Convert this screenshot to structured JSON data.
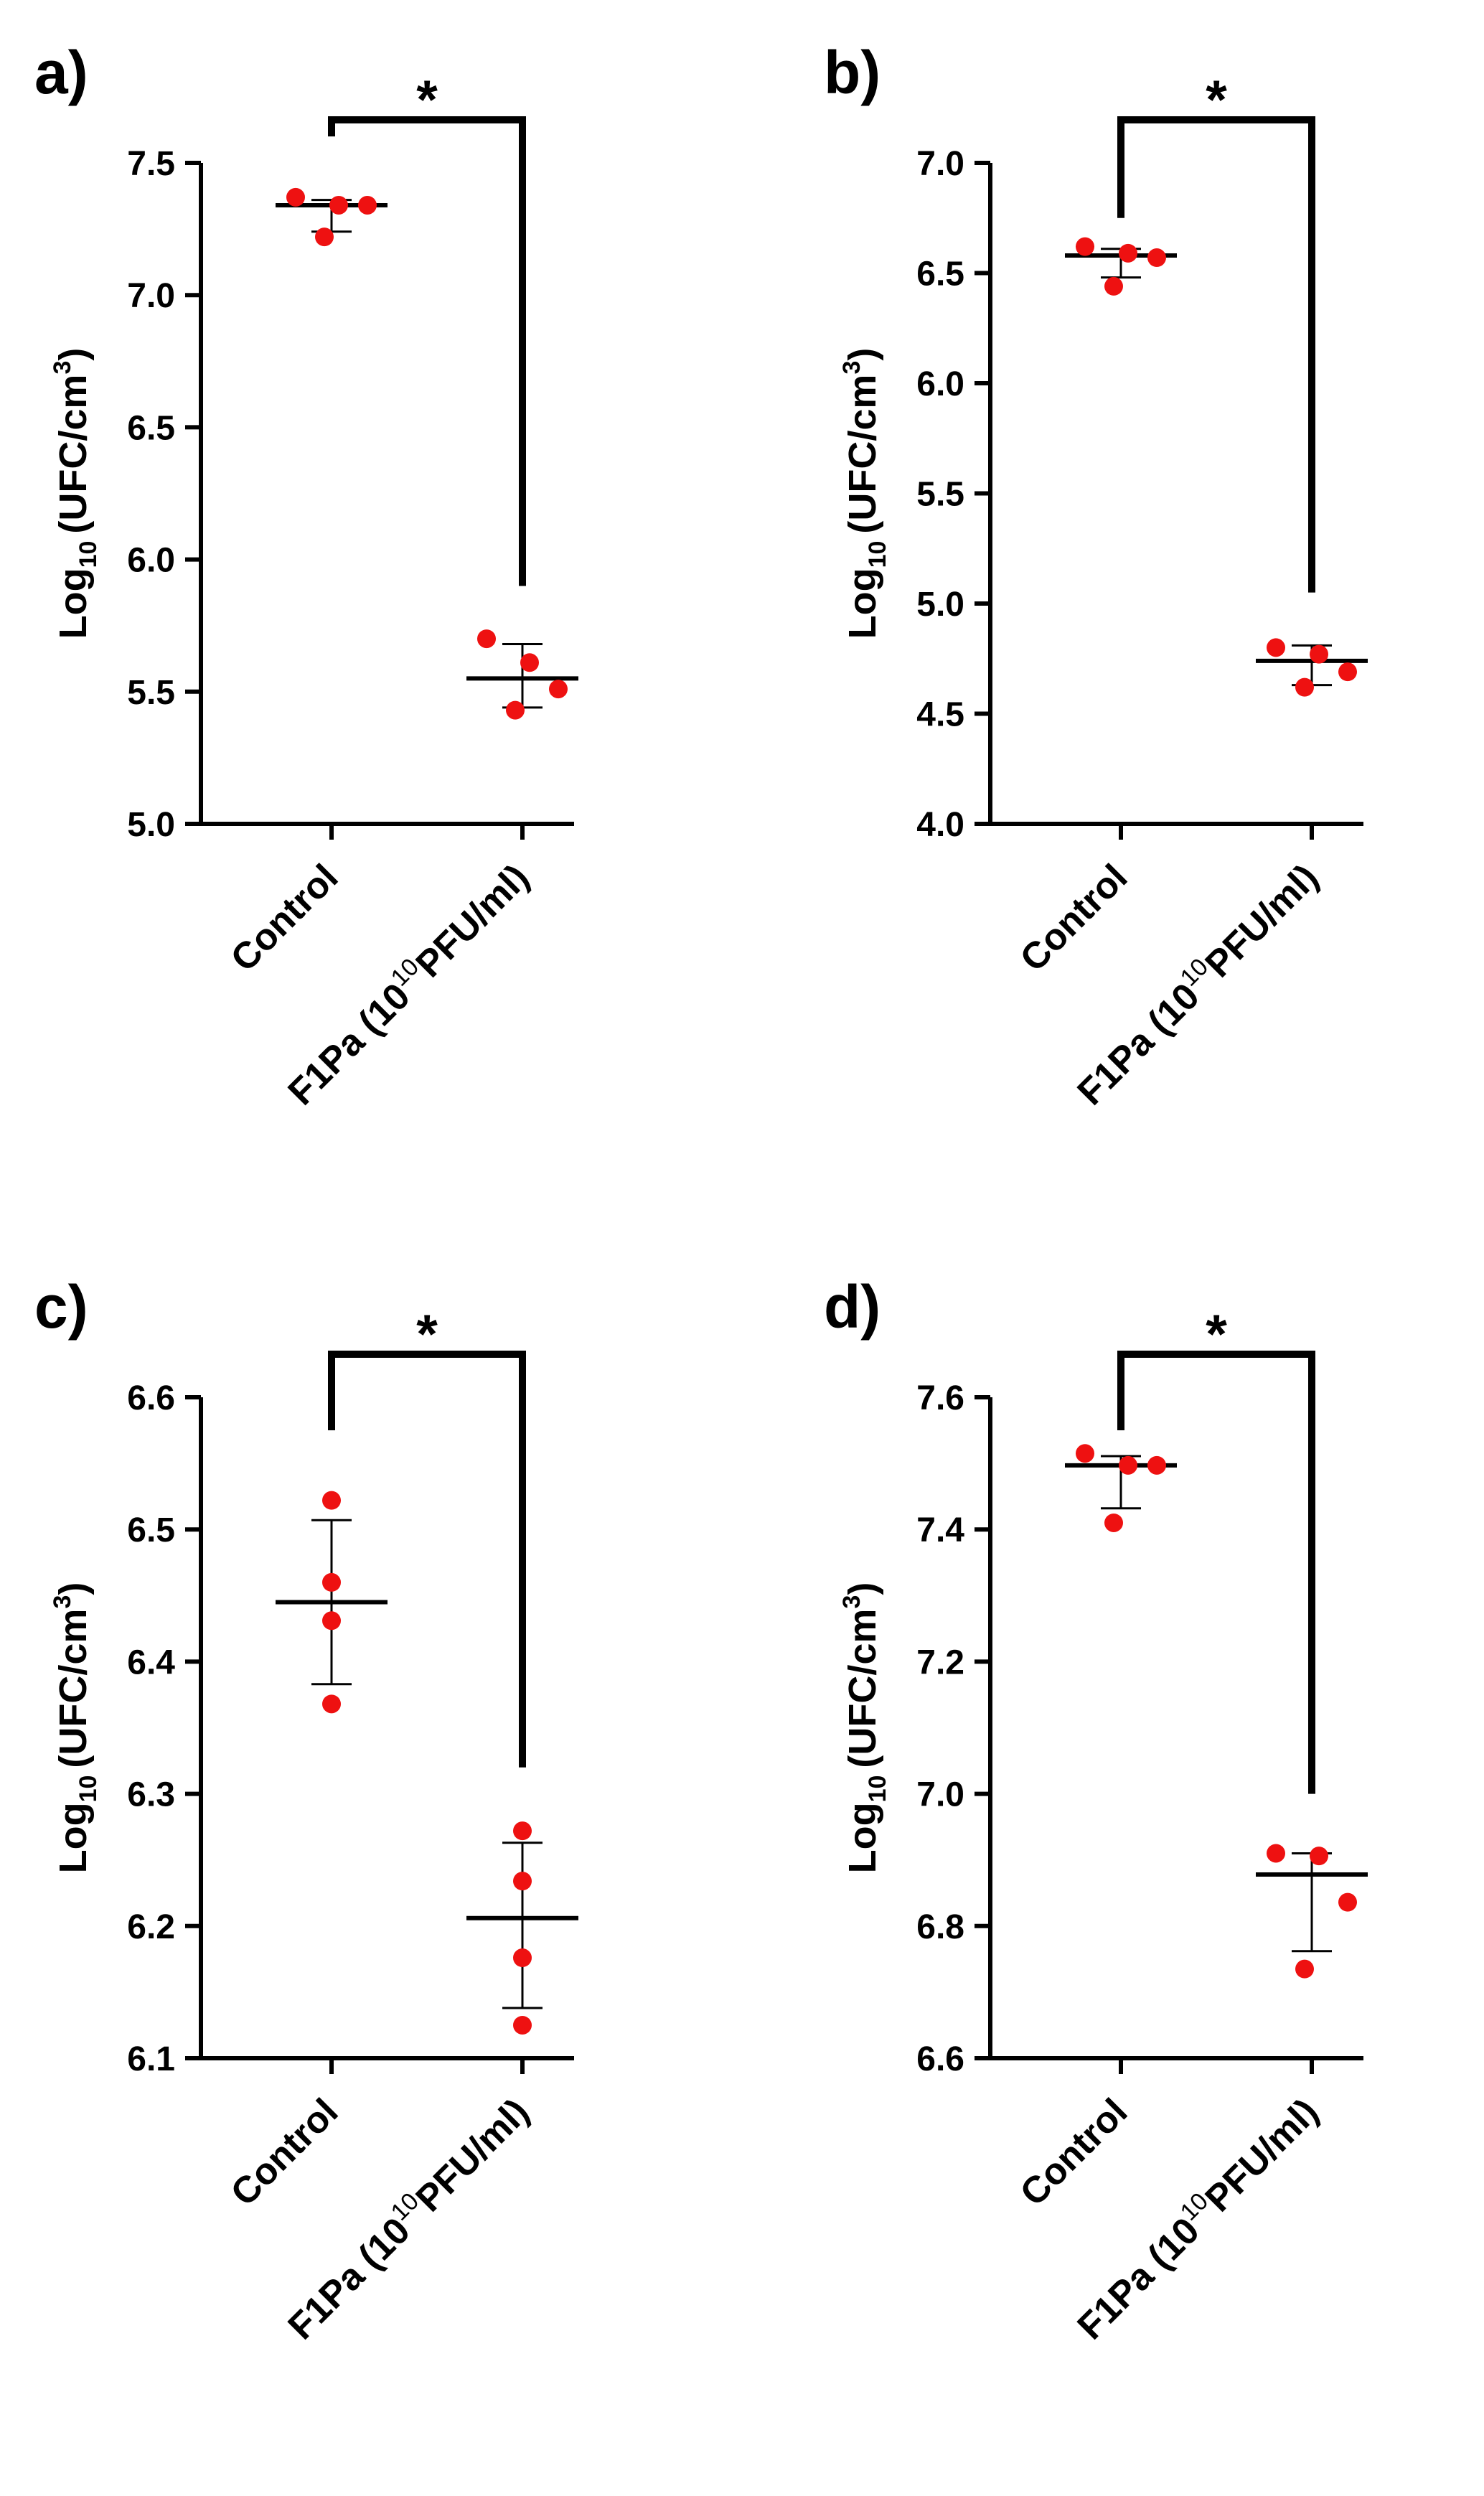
{
  "colors": {
    "point": "#ee1111",
    "ink": "#000000",
    "background": "#ffffff"
  },
  "chart_data": [
    {
      "panel_label": "a)",
      "type": "scatter",
      "ylabel": {
        "base": "Log",
        "sub": "10",
        "main": "(UFC/cm",
        "sup": "3",
        "close": ")"
      },
      "ylim": [
        5.0,
        7.5
      ],
      "yticks": [
        "5.0",
        "5.5",
        "6.0",
        "6.5",
        "7.0",
        "7.5"
      ],
      "categories": [
        {
          "parts": [
            "Control"
          ]
        },
        {
          "parts": [
            "F1Pa (10",
            "10",
            "PFU/ml)"
          ]
        }
      ],
      "series": [
        {
          "name": "Control",
          "values": [
            7.37,
            7.34,
            7.34,
            7.22
          ],
          "mean": 7.34,
          "sd_low": 7.24,
          "sd_high": 7.36
        },
        {
          "name": "F1Pa",
          "values": [
            5.7,
            5.61,
            5.51,
            5.43
          ],
          "mean": 5.55,
          "sd_low": 5.44,
          "sd_high": 5.68
        }
      ],
      "significance": {
        "label": "*",
        "level_left": 7.6,
        "level_right": 5.9
      }
    },
    {
      "panel_label": "b)",
      "type": "scatter",
      "ylabel": {
        "base": "Log",
        "sub": "10",
        "main": "(UFC/cm",
        "sup": "3",
        "close": ")"
      },
      "ylim": [
        4.0,
        7.0
      ],
      "yticks": [
        "4.0",
        "4.5",
        "5.0",
        "5.5",
        "6.0",
        "6.5",
        "7.0"
      ],
      "categories": [
        {
          "parts": [
            "Control"
          ]
        },
        {
          "parts": [
            "F1Pa (10",
            "10",
            "PFU/ml)"
          ]
        }
      ],
      "series": [
        {
          "name": "Control",
          "values": [
            6.62,
            6.59,
            6.57,
            6.44
          ],
          "mean": 6.58,
          "sd_low": 6.48,
          "sd_high": 6.61
        },
        {
          "name": "F1Pa",
          "values": [
            4.8,
            4.77,
            4.69,
            4.62
          ],
          "mean": 4.74,
          "sd_low": 4.63,
          "sd_high": 4.81
        }
      ],
      "significance": {
        "label": "*",
        "level_left": 6.75,
        "level_right": 5.05
      }
    },
    {
      "panel_label": "c)",
      "type": "scatter",
      "ylabel": {
        "base": "Log",
        "sub": "10",
        "main": "(UFC/cm",
        "sup": "3",
        "close": ")"
      },
      "ylim": [
        6.1,
        6.6
      ],
      "yticks": [
        "6.1",
        "6.2",
        "6.3",
        "6.4",
        "6.5",
        "6.6"
      ],
      "categories": [
        {
          "parts": [
            "Control"
          ]
        },
        {
          "parts": [
            "F1Pa (10",
            "10",
            "PFU/ml)"
          ]
        }
      ],
      "series": [
        {
          "name": "Control",
          "values": [
            6.522,
            6.46,
            6.431,
            6.368
          ],
          "mean": 6.445,
          "sd_low": 6.383,
          "sd_high": 6.507
        },
        {
          "name": "F1Pa",
          "values": [
            6.272,
            6.234,
            6.176,
            6.125
          ],
          "mean": 6.206,
          "sd_low": 6.138,
          "sd_high": 6.263
        }
      ],
      "significance": {
        "label": "*",
        "level_left": 6.575,
        "level_right": 6.32
      }
    },
    {
      "panel_label": "d)",
      "type": "scatter",
      "ylabel": {
        "base": "Log",
        "sub": "10",
        "main": "(UFC/cm",
        "sup": "3",
        "close": ")"
      },
      "ylim": [
        6.6,
        7.6
      ],
      "yticks": [
        "6.6",
        "6.8",
        "7.0",
        "7.2",
        "7.4",
        "7.6"
      ],
      "categories": [
        {
          "parts": [
            "Control"
          ]
        },
        {
          "parts": [
            "F1Pa (10",
            "10",
            "PFU/ml)"
          ]
        }
      ],
      "series": [
        {
          "name": "Control",
          "values": [
            7.515,
            7.497,
            7.497,
            7.41
          ],
          "mean": 7.497,
          "sd_low": 7.432,
          "sd_high": 7.511
        },
        {
          "name": "F1Pa",
          "values": [
            6.91,
            6.906,
            6.836,
            6.735
          ],
          "mean": 6.878,
          "sd_low": 6.762,
          "sd_high": 6.91
        }
      ],
      "significance": {
        "label": "*",
        "level_left": 7.55,
        "level_right": 7.0
      }
    }
  ]
}
